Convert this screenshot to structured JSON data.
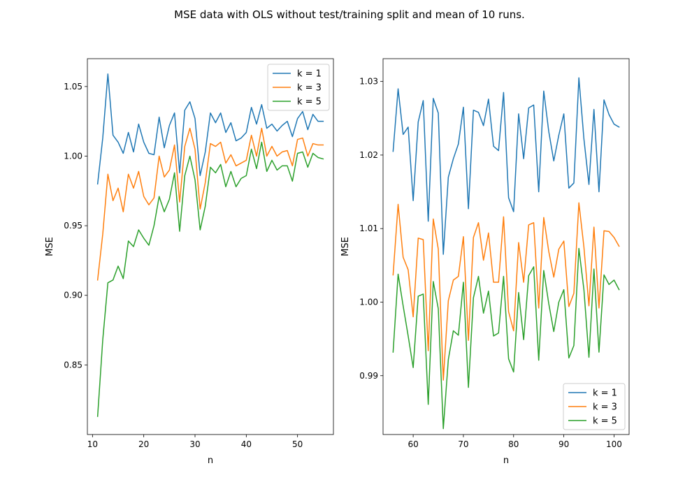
{
  "figure": {
    "title": "MSE data with OLS without test/training split and mean of 10 runs."
  },
  "chart_data": [
    {
      "type": "line",
      "title": "",
      "xlabel": "n",
      "ylabel": "MSE",
      "xlim": [
        9,
        57
      ],
      "ylim": [
        0.8,
        1.07
      ],
      "xticks": [
        10,
        20,
        30,
        40,
        50
      ],
      "yticks": [
        0.85,
        0.9,
        0.95,
        1.0,
        1.05
      ],
      "ytick_labels": [
        "0.85",
        "0.90",
        "0.95",
        "1.00",
        "1.05"
      ],
      "legend_position": "top-right",
      "grid": false,
      "x": [
        11,
        12,
        13,
        14,
        15,
        16,
        17,
        18,
        19,
        20,
        21,
        22,
        23,
        24,
        25,
        26,
        27,
        28,
        29,
        30,
        31,
        32,
        33,
        34,
        35,
        36,
        37,
        38,
        39,
        40,
        41,
        42,
        43,
        44,
        45,
        46,
        47,
        48,
        49,
        50,
        51,
        52,
        53,
        54,
        55
      ],
      "series": [
        {
          "name": "k = 1",
          "color": "#1f77b4",
          "values": [
            0.98,
            1.013,
            1.059,
            1.015,
            1.01,
            1.002,
            1.017,
            1.003,
            1.023,
            1.01,
            1.002,
            1.001,
            1.028,
            1.006,
            1.022,
            1.031,
            0.988,
            1.033,
            1.039,
            1.027,
            0.986,
            1.003,
            1.031,
            1.024,
            1.031,
            1.017,
            1.024,
            1.011,
            1.013,
            1.017,
            1.035,
            1.023,
            1.037,
            1.02,
            1.023,
            1.018,
            1.022,
            1.025,
            1.014,
            1.027,
            1.032,
            1.019,
            1.03,
            1.025,
            1.025
          ]
        },
        {
          "name": "k = 3",
          "color": "#ff7f0e",
          "values": [
            0.911,
            0.944,
            0.987,
            0.968,
            0.977,
            0.96,
            0.987,
            0.977,
            0.989,
            0.971,
            0.965,
            0.97,
            1.0,
            0.985,
            0.99,
            1.008,
            0.967,
            1.007,
            1.02,
            1.005,
            0.962,
            0.981,
            1.009,
            1.007,
            1.01,
            0.995,
            1.001,
            0.993,
            0.995,
            0.997,
            1.015,
            1.0,
            1.02,
            1.0,
            1.007,
            1.0,
            1.003,
            1.004,
            0.993,
            1.012,
            1.013,
            1.0,
            1.009,
            1.008,
            1.008
          ]
        },
        {
          "name": "k = 5",
          "color": "#2ca02c",
          "values": [
            0.813,
            0.868,
            0.909,
            0.911,
            0.921,
            0.912,
            0.939,
            0.935,
            0.947,
            0.941,
            0.936,
            0.95,
            0.971,
            0.96,
            0.969,
            0.988,
            0.946,
            0.986,
            1.0,
            0.983,
            0.947,
            0.964,
            0.992,
            0.988,
            0.994,
            0.978,
            0.989,
            0.978,
            0.984,
            0.986,
            1.005,
            0.991,
            1.01,
            0.989,
            0.997,
            0.99,
            0.993,
            0.993,
            0.982,
            1.002,
            1.003,
            0.992,
            1.002,
            0.999,
            0.998
          ]
        }
      ]
    },
    {
      "type": "line",
      "title": "",
      "xlabel": "n",
      "ylabel": "MSE",
      "xlim": [
        54,
        103
      ],
      "ylim": [
        0.982,
        1.0331
      ],
      "xticks": [
        60,
        70,
        80,
        90,
        100
      ],
      "yticks": [
        0.99,
        1.0,
        1.01,
        1.02,
        1.03
      ],
      "ytick_labels": [
        "0.99",
        "1.00",
        "1.01",
        "1.02",
        "1.03"
      ],
      "legend_position": "bottom-right",
      "grid": false,
      "x": [
        56,
        57,
        58,
        59,
        60,
        61,
        62,
        63,
        64,
        65,
        66,
        67,
        68,
        69,
        70,
        71,
        72,
        73,
        74,
        75,
        76,
        77,
        78,
        79,
        80,
        81,
        82,
        83,
        84,
        85,
        86,
        87,
        88,
        89,
        90,
        91,
        92,
        93,
        94,
        95,
        96,
        97,
        98,
        99,
        100,
        101
      ],
      "series": [
        {
          "name": "k = 1",
          "color": "#1f77b4",
          "values": [
            1.0205,
            1.029,
            1.0228,
            1.0238,
            1.0138,
            1.0245,
            1.0274,
            1.011,
            1.0277,
            1.0257,
            1.0065,
            1.017,
            1.0195,
            1.0215,
            1.0265,
            1.0127,
            1.0261,
            1.0258,
            1.024,
            1.0276,
            1.0212,
            1.0206,
            1.0285,
            1.0142,
            1.0123,
            1.0256,
            1.0195,
            1.0264,
            1.0268,
            1.015,
            1.0287,
            1.0232,
            1.0192,
            1.0227,
            1.0256,
            1.0155,
            1.0162,
            1.0305,
            1.0222,
            1.016,
            1.0262,
            1.015,
            1.0275,
            1.0255,
            1.0242,
            1.0238
          ]
        },
        {
          "name": "k = 3",
          "color": "#ff7f0e",
          "values": [
            1.0037,
            1.0133,
            1.0061,
            1.0044,
            0.998,
            1.0087,
            1.0085,
            0.9934,
            1.0113,
            1.0072,
            0.9894,
            1.0002,
            1.003,
            1.0035,
            1.0089,
            0.9948,
            1.0088,
            1.0108,
            1.0057,
            1.0094,
            1.0027,
            1.0027,
            1.0116,
            0.9987,
            0.9961,
            1.0081,
            1.0027,
            1.0105,
            1.0108,
            0.9992,
            1.0115,
            1.0069,
            1.0034,
            1.0072,
            1.0083,
            0.9994,
            1.0012,
            1.0135,
            1.0075,
            0.9995,
            1.0102,
            0.9992,
            1.0097,
            1.0096,
            1.0088,
            1.0076
          ]
        },
        {
          "name": "k = 5",
          "color": "#2ca02c",
          "values": [
            0.9932,
            1.0038,
            0.9995,
            0.9954,
            0.9911,
            1.0008,
            1.0011,
            0.9861,
            1.0028,
            0.9991,
            0.9828,
            0.9922,
            0.9961,
            0.9955,
            1.0027,
            0.9884,
            1.0006,
            1.0035,
            0.9985,
            1.0015,
            0.9954,
            0.9958,
            1.0035,
            0.9923,
            0.9905,
            1.0013,
            0.9949,
            1.0036,
            1.0048,
            0.9921,
            1.0043,
            0.9998,
            0.996,
            1.0,
            1.0017,
            0.9924,
            0.9941,
            1.0073,
            1.0017,
            0.9925,
            1.0045,
            0.9932,
            1.0037,
            1.0024,
            1.003,
            1.0017
          ]
        }
      ]
    }
  ]
}
